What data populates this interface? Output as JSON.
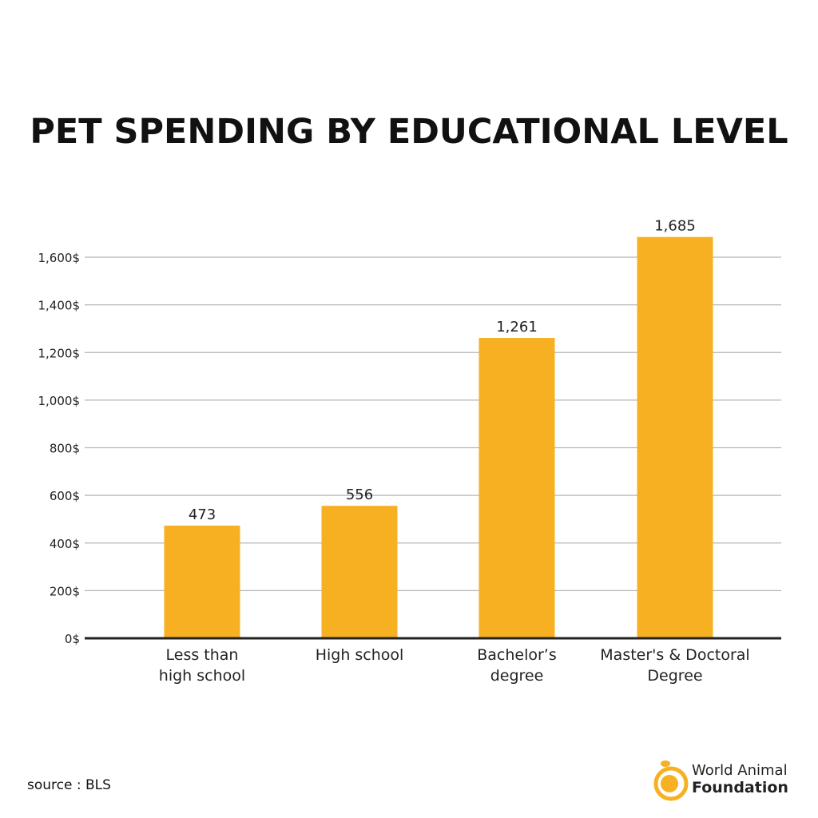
{
  "chart_data": {
    "type": "bar",
    "title": "PET SPENDING BY EDUCATIONAL LEVEL",
    "categories": [
      [
        "Less than",
        "high school"
      ],
      [
        "High school"
      ],
      [
        "Bachelor’s",
        "degree"
      ],
      [
        "Master's & Doctoral",
        "Degree"
      ]
    ],
    "values": [
      473,
      556,
      1261,
      1685
    ],
    "data_labels": [
      "473",
      "556",
      "1,261",
      "1,685"
    ],
    "y_ticks": [
      0,
      200,
      400,
      600,
      800,
      1000,
      1200,
      1400,
      1600
    ],
    "y_tick_labels": [
      "0$",
      "200$",
      "400$",
      "600$",
      "800$",
      "1,000$",
      "1,200$",
      "1,400$",
      "1,600$"
    ],
    "ylim": [
      0,
      1700
    ],
    "grid": true,
    "bar_color": "#F7B022"
  },
  "footer": {
    "source": "source : BLS"
  },
  "logo": {
    "line1": "World Animal",
    "line2": "Foundation",
    "color": "#F7B022"
  }
}
